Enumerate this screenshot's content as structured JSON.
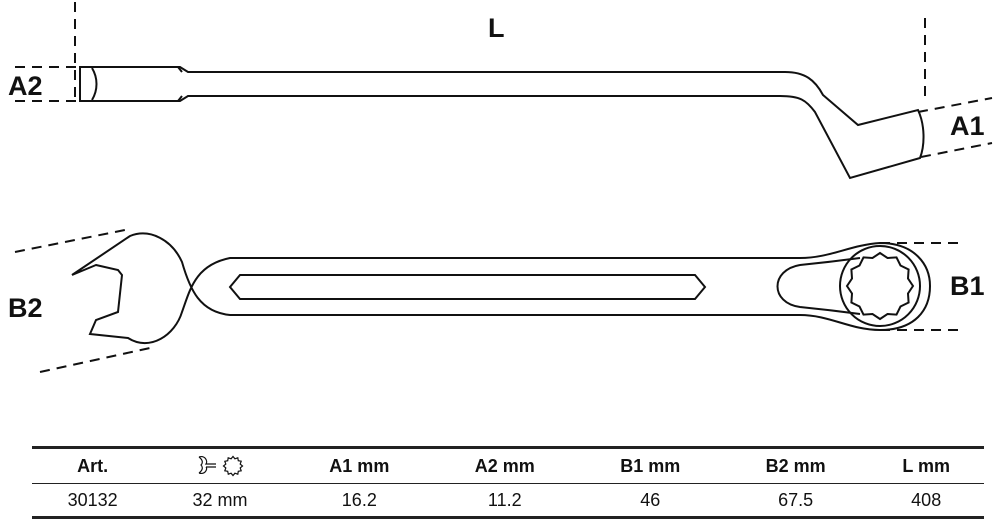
{
  "drawing": {
    "labels": {
      "L": "L",
      "A1": "A1",
      "A2": "A2",
      "B1": "B1",
      "B2": "B2"
    },
    "line_color": "#111111"
  },
  "table": {
    "headers": [
      "Art.",
      "",
      "A1  mm",
      "A2  mm",
      "B1  mm",
      "B2  mm",
      "L  mm"
    ],
    "header_icons": [
      "open-end-wrench-icon",
      "12-point-ring-icon"
    ],
    "rows": [
      [
        "30132",
        "32 mm",
        "16.2",
        "11.2",
        "46",
        "67.5",
        "408"
      ]
    ]
  }
}
